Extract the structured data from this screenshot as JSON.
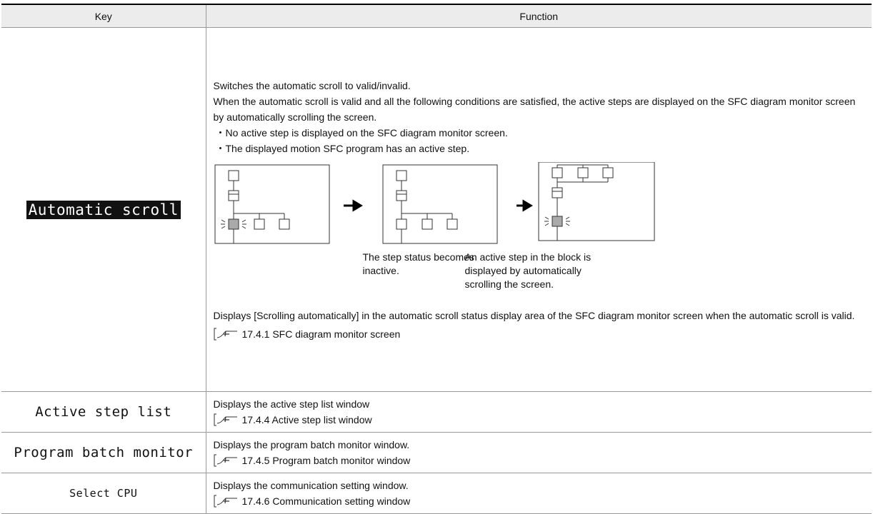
{
  "table": {
    "headers": [
      "Key",
      "Function"
    ],
    "rows": [
      {
        "key": "Automatic scroll",
        "lines": [
          "Switches the automatic scroll to valid/invalid.",
          "When the automatic scroll is valid and all the following conditions are satisfied, the active steps are displayed on the SFC diagram monitor screen by automatically scrolling the screen."
        ],
        "bullets": [
          "・No active step is displayed on the SFC diagram monitor screen.",
          "・The displayed motion SFC program has an active step."
        ],
        "captions": [
          "The step status becomes inactive.",
          "An active step in the block is displayed by automatically scrolling the screen."
        ],
        "after": "Displays [Scrolling automatically] in the automatic scroll status display area of the SFC diagram monitor screen when the automatic scroll is valid.",
        "reference": "17.4.1 SFC diagram monitor screen"
      },
      {
        "key": "Active step list",
        "lines": [
          "Displays the active step list window"
        ],
        "reference": "17.4.4 Active step list window"
      },
      {
        "key": "Program batch monitor",
        "lines": [
          "Displays the program batch monitor window."
        ],
        "reference": "17.4.5 Program batch monitor window"
      },
      {
        "key": "Select CPU",
        "lines": [
          "Displays the communication setting window."
        ],
        "reference": "17.4.6 Communication setting window"
      }
    ]
  }
}
